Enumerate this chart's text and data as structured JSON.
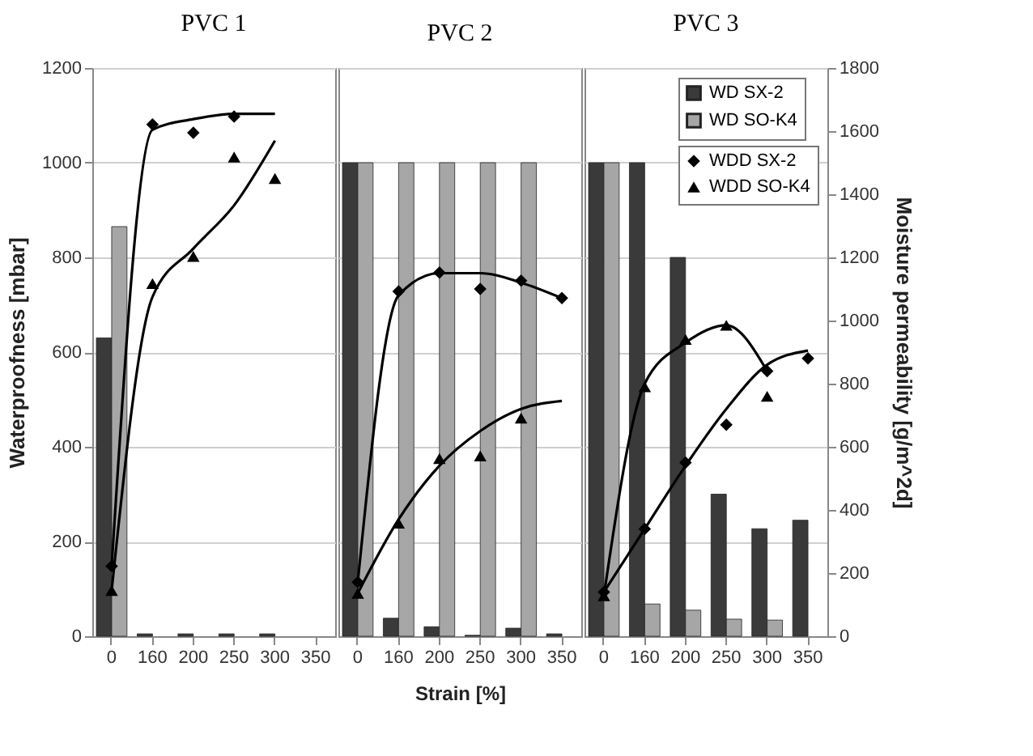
{
  "chart_data": {
    "type": "bar",
    "xlabel": "Strain [%]",
    "ylabel": "Waterproofness [mbar]",
    "y2label": "Moisture permeability [g/m^2d]",
    "annotations": [
      "PVC 1",
      "PVC 2",
      "PVC 3"
    ],
    "categories": [
      "0",
      "160",
      "200",
      "250",
      "300",
      "350",
      "0",
      "160",
      "200",
      "250",
      "300",
      "350",
      "0",
      "160",
      "200",
      "250",
      "300",
      "350"
    ],
    "ylim": [
      0,
      1200
    ],
    "yticks": [
      0,
      200,
      400,
      600,
      800,
      1000,
      1200
    ],
    "y2lim": [
      0,
      1800
    ],
    "y2ticks": [
      0,
      200,
      400,
      600,
      800,
      1000,
      1200,
      1400,
      1600,
      1800
    ],
    "grid": "y",
    "legend": "top right",
    "series": [
      {
        "name": "WD SX-2",
        "color": "#3a3a3a",
        "values": [
          630,
          5,
          5,
          5,
          5,
          null,
          1000,
          38,
          20,
          2,
          17,
          5,
          1000,
          1000,
          800,
          300,
          227,
          245
        ]
      },
      {
        "name": "WD SO-K4",
        "color": "#a6a6a6",
        "values": [
          865,
          null,
          null,
          null,
          null,
          null,
          1000,
          1000,
          1000,
          1000,
          1000,
          null,
          1000,
          68,
          55,
          36,
          34,
          null
        ]
      },
      {
        "name": "WDD SX-2",
        "type": "scatter",
        "axis": "y2",
        "marker": "diamond",
        "color": "#000000",
        "values": [
          222,
          1621,
          1595,
          1646,
          null,
          null,
          171,
          1092,
          1152,
          1100,
          1126,
          1071,
          140,
          340,
          550,
          670,
          840,
          880
        ]
      },
      {
        "name": "WDD SO-K4",
        "type": "scatter",
        "axis": "y2",
        "marker": "triangle",
        "color": "#000000",
        "values": [
          145,
          1117,
          1203,
          1518,
          1450,
          null,
          136,
          358,
          563,
          571,
          691,
          null,
          128,
          790,
          940,
          985,
          760,
          null
        ]
      },
      {
        "type": "line",
        "axis": "y2",
        "color": "#000000",
        "values": [
          222,
          1604,
          1638,
          1655,
          1655,
          null,
          null,
          null,
          null,
          null,
          null,
          null,
          null,
          null,
          null,
          null,
          null,
          null
        ]
      },
      {
        "type": "line",
        "axis": "y2",
        "color": "#000000",
        "values": [
          145,
          1075,
          1228,
          1365,
          1570,
          null,
          null,
          null,
          null,
          null,
          null,
          null,
          null,
          null,
          null,
          null,
          null,
          null
        ]
      },
      {
        "type": "line",
        "axis": "y2",
        "color": "#000000",
        "values": [
          null,
          null,
          null,
          null,
          null,
          null,
          171,
          1080,
          1150,
          1150,
          1120,
          1071,
          null,
          null,
          null,
          null,
          null,
          null
        ]
      },
      {
        "type": "line",
        "axis": "y2",
        "color": "#000000",
        "values": [
          null,
          null,
          null,
          null,
          null,
          null,
          136,
          370,
          540,
          650,
          720,
          745,
          null,
          null,
          null,
          null,
          null,
          null
        ]
      },
      {
        "type": "line",
        "axis": "y2",
        "color": "#000000",
        "values": [
          null,
          null,
          null,
          null,
          null,
          null,
          null,
          null,
          null,
          null,
          null,
          null,
          128,
          800,
          930,
          985,
          840,
          null
        ]
      },
      {
        "type": "line",
        "axis": "y2",
        "color": "#000000",
        "values": [
          null,
          null,
          null,
          null,
          null,
          null,
          null,
          null,
          null,
          null,
          null,
          null,
          140,
          340,
          540,
          720,
          860,
          905
        ]
      }
    ]
  }
}
